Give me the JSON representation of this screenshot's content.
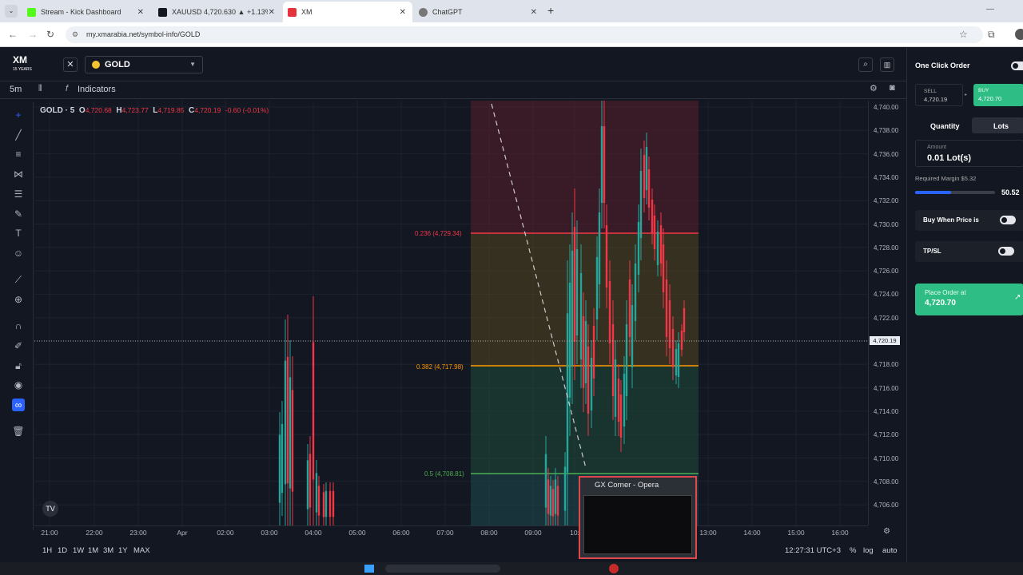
{
  "browser": {
    "tabs": [
      {
        "title": "Stream - Kick Dashboard",
        "fav_color": "#53fc18"
      },
      {
        "title": "XAUUSD 4,720.630 ▲ +1.13% |",
        "fav_color": "#131722"
      },
      {
        "title": "XM",
        "fav_color": "#e5333b"
      },
      {
        "title": "ChatGPT",
        "fav_color": "#777777"
      }
    ],
    "new_tab": "+",
    "url": "my.xmarabia.net/symbol-info/GOLD"
  },
  "platform": {
    "logo": "XM",
    "logo_sub": "15 YEARS",
    "close": "✕",
    "symbol": "GOLD",
    "interval": "5m",
    "indicators_label": "Indicators",
    "legend": {
      "name": "GOLD · 5",
      "o_key": "O",
      "o_val": "4,720.68",
      "h_key": "H",
      "h_val": "4,723.77",
      "l_key": "L",
      "l_val": "4,719.85",
      "c_key": "C",
      "c_val": "4,720.19",
      "change": "-0.60 (-0.01%)"
    },
    "fib": [
      {
        "label": "0.236 (4,729.34)",
        "color": "#f23645"
      },
      {
        "label": "0.382 (4,717.98)",
        "color": "#ff9800"
      },
      {
        "label": "0.5 (4,708.81)",
        "color": "#4caf50"
      }
    ],
    "price_ticks": [
      "4,740.00",
      "4,738.00",
      "4,736.00",
      "4,734.00",
      "4,732.00",
      "4,730.00",
      "4,728.00",
      "4,726.00",
      "4,724.00",
      "4,722.00",
      "4,720.00",
      "4,718.00",
      "4,716.00",
      "4,714.00",
      "4,712.00",
      "4,710.00",
      "4,708.00",
      "4,706.00"
    ],
    "current_price_tag": "4,720.19",
    "time_ticks": [
      "21:00",
      "22:00",
      "23:00",
      "Apr",
      "02:00",
      "03:00",
      "04:00",
      "05:00",
      "06:00",
      "07:00",
      "08:00",
      "09:00",
      "10:",
      "13:00",
      "14:00",
      "15:00",
      "16:00"
    ],
    "ranges": [
      "1H",
      "1D",
      "1W",
      "1M",
      "3M",
      "1Y",
      "MAX"
    ],
    "clock": "12:27:31 UTC+3",
    "percent_btn": "%",
    "log_btn": "log",
    "auto_btn": "auto"
  },
  "order_panel": {
    "title": "One Click Order",
    "sell_label": "SELL",
    "sell_price": "4,720.19",
    "buy_label": "BUY",
    "buy_price": "4,720.70",
    "tab_quantity": "Quantity",
    "tab_lots": "Lots",
    "amount_label": "Amount",
    "amount_value": "0.01 Lot(s)",
    "margin_label": "Required Margin $5.32",
    "slider_value": "50.52",
    "slider_fraction": 0.45,
    "buy_when_label": "Buy When Price is",
    "tpsl_label": "TP/SL",
    "place_order_label": "Place Order at",
    "place_order_price": "4,720.70"
  },
  "popup": {
    "title": "GX Corner - Opera"
  },
  "colors": {
    "up": "#26a69a",
    "down": "#f23645",
    "accent": "#2962ff",
    "buy": "#2ebd85"
  }
}
